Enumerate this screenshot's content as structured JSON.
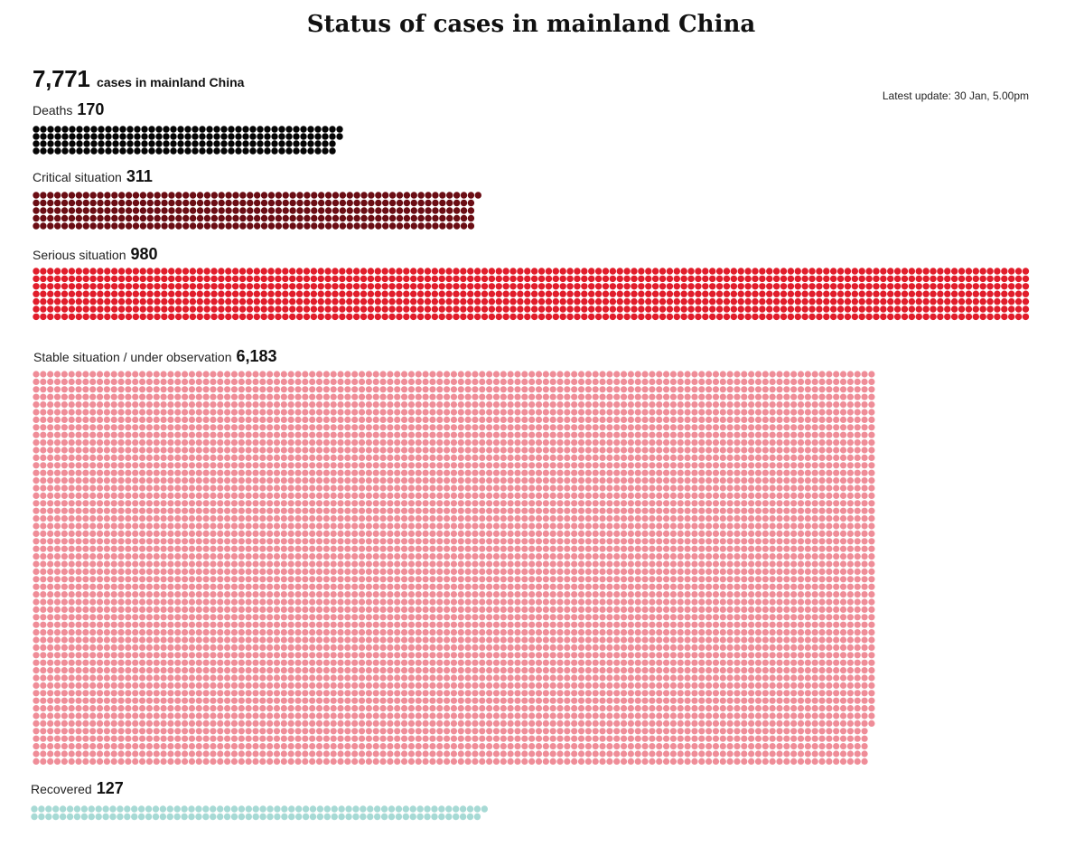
{
  "title": "Status of cases in mainland China",
  "total": {
    "value": "7,771",
    "label": "cases in mainland China"
  },
  "update": "Latest update: 30 Jan, 5.00pm",
  "chart_data": {
    "type": "waffle",
    "title": "Status of cases in mainland China",
    "total": 7771,
    "categories": [
      "Deaths",
      "Critical situation",
      "Serious situation",
      "Stable situation / under observation",
      "Recovered"
    ],
    "values": [
      170,
      311,
      980,
      6183,
      127
    ],
    "series": [
      {
        "key": "deaths",
        "label": "Deaths",
        "value": 170,
        "value_text": "170",
        "color": "#050505"
      },
      {
        "key": "critical",
        "label": "Critical situation",
        "value": 311,
        "value_text": "311",
        "color": "#6b0d14"
      },
      {
        "key": "serious",
        "label": "Serious situation",
        "value": 980,
        "value_text": "980",
        "color": "#e11d2b"
      },
      {
        "key": "stable",
        "label": "Stable situation / under observation",
        "value": 6183,
        "value_text": "6,183",
        "color": "#ef8d98"
      },
      {
        "key": "recovered",
        "label": "Recovered",
        "value": 127,
        "value_text": "127",
        "color": "#a7dad5"
      }
    ]
  }
}
